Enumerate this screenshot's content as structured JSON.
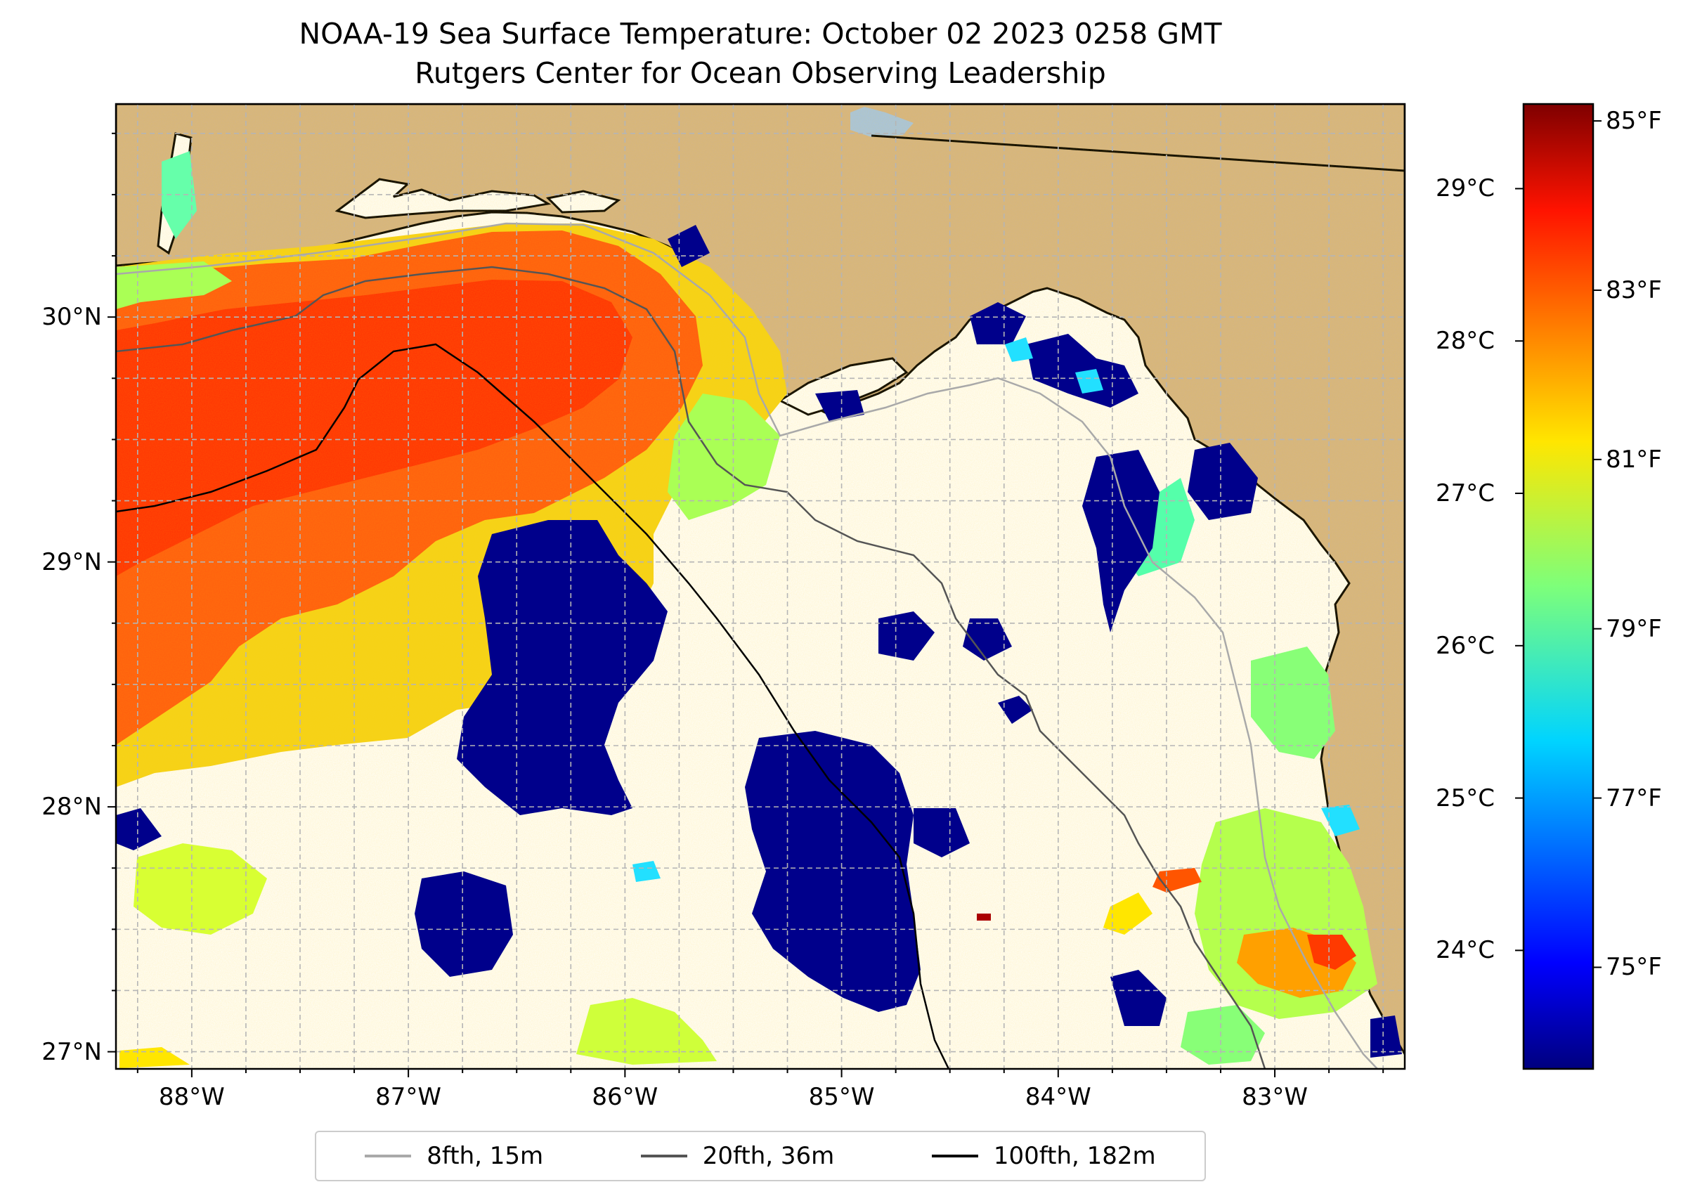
{
  "title": "NOAA-19 Sea Surface Temperature: October 02 2023 0258 GMT",
  "subtitle": "Rutgers Center for Ocean Observing Leadership",
  "map": {
    "extent": {
      "lon": [
        -88.35,
        -82.4
      ],
      "lat": [
        26.93,
        30.87
      ]
    },
    "lat_ticks": [
      {
        "value": 30,
        "label": "30°N"
      },
      {
        "value": 29,
        "label": "29°N"
      },
      {
        "value": 28,
        "label": "28°N"
      },
      {
        "value": 27,
        "label": "27°N"
      }
    ],
    "lon_ticks": [
      {
        "value": -88,
        "label": "88°W"
      },
      {
        "value": -87,
        "label": "87°W"
      },
      {
        "value": -86,
        "label": "86°W"
      },
      {
        "value": -85,
        "label": "85°W"
      },
      {
        "value": -84,
        "label": "84°W"
      },
      {
        "value": -83,
        "label": "83°W"
      }
    ],
    "gridlines": true,
    "colors": {
      "land": "#d2b48c",
      "no_data": "#ffffff",
      "warm": "#ff3300",
      "cold": "#00008b",
      "mid": "#7fff7f",
      "lake": "#a4c4e8"
    }
  },
  "colorbar": {
    "colormap": "jet",
    "celsius_ticks": [
      {
        "value": 29,
        "label": "29°C"
      },
      {
        "value": 28,
        "label": "28°C"
      },
      {
        "value": 27,
        "label": "27°C"
      },
      {
        "value": 26,
        "label": "26°C"
      },
      {
        "value": 25,
        "label": "25°C"
      },
      {
        "value": 24,
        "label": "24°C"
      }
    ],
    "fahrenheit_ticks": [
      {
        "value": 85,
        "label": "85°F"
      },
      {
        "value": 83,
        "label": "83°F"
      },
      {
        "value": 81,
        "label": "81°F"
      },
      {
        "value": 79,
        "label": "79°F"
      },
      {
        "value": 77,
        "label": "77°F"
      },
      {
        "value": 75,
        "label": "75°F"
      }
    ]
  },
  "legend": {
    "position": "bottom-center",
    "items": [
      {
        "label": "8fth, 15m",
        "color": "#a9a9a9"
      },
      {
        "label": "20fth, 36m",
        "color": "#555555"
      },
      {
        "label": "100fth, 182m",
        "color": "#000000"
      }
    ]
  }
}
